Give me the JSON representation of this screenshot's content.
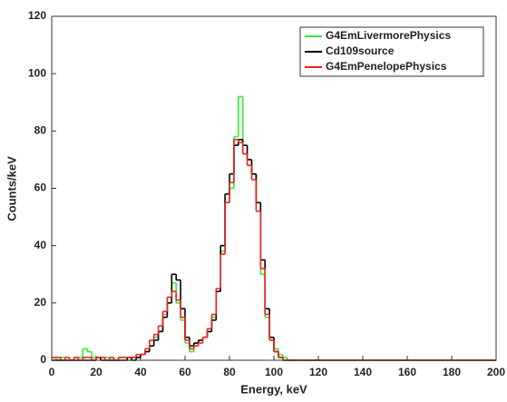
{
  "chart_data": {
    "type": "histogram",
    "xlabel": "Energy, keV",
    "ylabel": "Counts/keV",
    "bins": [
      0,
      2,
      4,
      6,
      8,
      10,
      12,
      14,
      16,
      18,
      20,
      22,
      24,
      26,
      28,
      30,
      32,
      34,
      36,
      38,
      40,
      42,
      44,
      46,
      48,
      50,
      52,
      54,
      56,
      58,
      60,
      62,
      64,
      66,
      68,
      70,
      72,
      74,
      76,
      78,
      80,
      82,
      84,
      86,
      88,
      90,
      92,
      94,
      96,
      98,
      100,
      102,
      104,
      106,
      108,
      110,
      200
    ],
    "series": [
      {
        "name": "G4EmLivermorePhysics",
        "color": "#33ee33",
        "values": [
          1,
          0,
          1,
          0,
          0,
          1,
          1,
          4,
          3,
          1,
          1,
          1,
          1,
          0,
          0,
          1,
          1,
          0,
          1,
          1,
          2,
          3,
          5,
          8,
          10,
          16,
          22,
          27,
          20,
          14,
          6,
          3,
          6,
          7,
          8,
          10,
          15,
          24,
          38,
          55,
          60,
          78,
          92,
          72,
          70,
          65,
          55,
          30,
          15,
          8,
          4,
          2,
          1,
          0,
          0,
          0
        ]
      },
      {
        "name": "Cd109source",
        "color": "#000000",
        "values": [
          0,
          0,
          0,
          0,
          0,
          0,
          0,
          0,
          0,
          0,
          1,
          0,
          0,
          0,
          0,
          0,
          0,
          1,
          0,
          1,
          2,
          3,
          5,
          7,
          10,
          15,
          20,
          30,
          28,
          18,
          8,
          5,
          6,
          7,
          8,
          10,
          14,
          24,
          40,
          58,
          65,
          75,
          77,
          75,
          70,
          65,
          55,
          35,
          18,
          8,
          3,
          1,
          0,
          0,
          0,
          0
        ]
      },
      {
        "name": "G4EmPenelopePhysics",
        "color": "#ee2222",
        "values": [
          1,
          1,
          0,
          1,
          0,
          1,
          0,
          1,
          1,
          0,
          1,
          1,
          0,
          1,
          0,
          1,
          1,
          1,
          1,
          2,
          2,
          4,
          7,
          9,
          12,
          17,
          22,
          24,
          21,
          15,
          7,
          4,
          5,
          6,
          8,
          11,
          16,
          25,
          37,
          55,
          62,
          77,
          76,
          72,
          68,
          63,
          52,
          32,
          16,
          7,
          3,
          1,
          0,
          0,
          0,
          0
        ]
      }
    ],
    "xlim": [
      0,
      200
    ],
    "xticks": [
      0,
      20,
      40,
      60,
      80,
      100,
      120,
      140,
      160,
      180,
      200
    ],
    "ylim": [
      0,
      120
    ],
    "yticks": [
      0,
      20,
      40,
      60,
      80,
      100,
      120
    ],
    "legend": "upper right"
  }
}
